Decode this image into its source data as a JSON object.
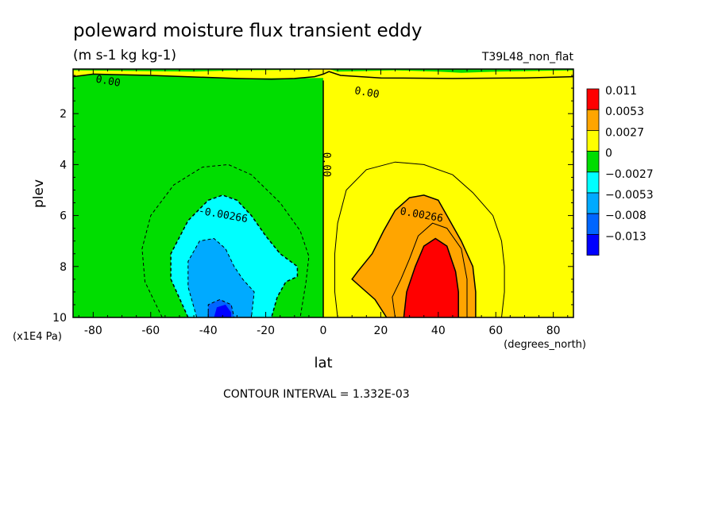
{
  "chart_data": {
    "type": "heatmap",
    "title": "poleward moisture flux transient eddy",
    "units": "(m s-1 kg kg-1)",
    "run_label": "T39L48_non_flat",
    "xlabel": "lat",
    "ylabel": "plev",
    "x_units": "(degrees_north)",
    "y_units": "(x1E4 Pa)",
    "xlim": [
      -87,
      87
    ],
    "ylim": [
      10,
      0.25
    ],
    "x_ticks": [
      -80,
      -60,
      -40,
      -20,
      0,
      20,
      40,
      60,
      80
    ],
    "x_tick_labels": [
      "-80",
      "-60",
      "-40",
      "-20",
      "0",
      "20",
      "40",
      "60",
      "80"
    ],
    "y_ticks": [
      2,
      4,
      6,
      8,
      10
    ],
    "y_tick_labels": [
      "2",
      "4",
      "6",
      "8",
      "10"
    ],
    "contour_interval": "CONTOUR INTERVAL = 1.332E-03",
    "contour_labels": [
      {
        "text": "0.00",
        "x": -75,
        "y": 0.85
      },
      {
        "text": "0.00",
        "x": 15,
        "y": 1.3
      },
      {
        "text": "0.00",
        "x": 0,
        "y": 4.0
      },
      {
        "text": "-0.00266",
        "x": -35,
        "y": 6.1
      },
      {
        "text": "0.00266",
        "x": 34,
        "y": 6.1
      }
    ],
    "legend": {
      "placement": "right",
      "levels": [
        {
          "label": "0.011",
          "color": "#ff0000"
        },
        {
          "label": "0.0053",
          "color": "#ffa500"
        },
        {
          "label": "0.0027",
          "color": "#ffff00"
        },
        {
          "label": "0",
          "color": "#00dd00"
        },
        {
          "label": "−0.0027",
          "color": "#00ffff"
        },
        {
          "label": "−0.0053",
          "color": "#00aaff"
        },
        {
          "label": "−0.008",
          "color": "#0066ff"
        },
        {
          "label": "−0.013",
          "color": "#0000ff"
        }
      ]
    },
    "regions": [
      {
        "name": "south-negative",
        "color": "#00dd00",
        "points": [
          [
            -87,
            0.55
          ],
          [
            -87,
            10
          ],
          [
            0,
            10
          ],
          [
            0,
            0.6
          ],
          [
            -30,
            0.62
          ],
          [
            -60,
            0.5
          ],
          [
            -80,
            0.45
          ]
        ]
      },
      {
        "name": "top-south-strip",
        "color": "#00dd00",
        "points": [
          [
            -87,
            0.25
          ],
          [
            -87,
            0.3
          ],
          [
            -45,
            0.35
          ],
          [
            -30,
            0.3
          ],
          [
            -5,
            0.28
          ],
          [
            -2,
            0.25
          ]
        ]
      },
      {
        "name": "top-north-strip",
        "color": "#00dd00",
        "points": [
          [
            2,
            0.25
          ],
          [
            5,
            0.35
          ],
          [
            25,
            0.3
          ],
          [
            40,
            0.35
          ],
          [
            48,
            0.4
          ],
          [
            60,
            0.35
          ],
          [
            87,
            0.3
          ],
          [
            87,
            0.25
          ]
        ]
      },
      {
        "name": "south-contour-0.0027",
        "color": "#00ffff",
        "points": [
          [
            -20,
            10
          ],
          [
            -47,
            10
          ],
          [
            -53,
            8.5
          ],
          [
            -53,
            7.5
          ],
          [
            -47,
            6.2
          ],
          [
            -40,
            5.4
          ],
          [
            -35,
            5.2
          ],
          [
            -30,
            5.4
          ],
          [
            -25,
            6.0
          ],
          [
            -20,
            6.8
          ],
          [
            -15,
            7.5
          ],
          [
            -9,
            8.0
          ],
          [
            -9,
            8.4
          ],
          [
            -13,
            8.6
          ],
          [
            -16,
            9.2
          ],
          [
            -18,
            10
          ]
        ]
      },
      {
        "name": "south-contour-0.0053",
        "color": "#00aaff",
        "points": [
          [
            -44,
            10
          ],
          [
            -47,
            8.8
          ],
          [
            -47,
            7.8
          ],
          [
            -43,
            7.0
          ],
          [
            -38,
            6.9
          ],
          [
            -34,
            7.3
          ],
          [
            -31,
            8.0
          ],
          [
            -28,
            8.5
          ],
          [
            -24,
            9.0
          ],
          [
            -25,
            10
          ]
        ]
      },
      {
        "name": "south-contour-0.008",
        "color": "#0066ff",
        "points": [
          [
            -40,
            10
          ],
          [
            -40,
            9.5
          ],
          [
            -36,
            9.3
          ],
          [
            -32,
            9.5
          ],
          [
            -31,
            10
          ]
        ]
      },
      {
        "name": "south-contour-0.013",
        "color": "#0000ff",
        "points": [
          [
            -38,
            10
          ],
          [
            -37,
            9.6
          ],
          [
            -34,
            9.5
          ],
          [
            -32,
            9.8
          ],
          [
            -32,
            10
          ]
        ]
      },
      {
        "name": "north-contour-0.0027",
        "color": "#ffa500",
        "points": [
          [
            22,
            10
          ],
          [
            18,
            9.3
          ],
          [
            13,
            8.8
          ],
          [
            10,
            8.5
          ],
          [
            12,
            8.2
          ],
          [
            17,
            7.5
          ],
          [
            21,
            6.6
          ],
          [
            25,
            5.8
          ],
          [
            30,
            5.3
          ],
          [
            35,
            5.2
          ],
          [
            40,
            5.4
          ],
          [
            44,
            6.2
          ],
          [
            48,
            7.0
          ],
          [
            52,
            8.0
          ],
          [
            53,
            9.0
          ],
          [
            53,
            10
          ]
        ]
      },
      {
        "name": "north-contour-0.0053",
        "color": "#ff0000",
        "points": [
          [
            28,
            10
          ],
          [
            29,
            9.0
          ],
          [
            32,
            8.0
          ],
          [
            35,
            7.2
          ],
          [
            39,
            6.9
          ],
          [
            43,
            7.2
          ],
          [
            46,
            8.2
          ],
          [
            47,
            9.0
          ],
          [
            47,
            10
          ]
        ]
      }
    ],
    "contours": [
      {
        "style": "solid",
        "width": 1.5,
        "points": [
          [
            0,
            0.7
          ],
          [
            0,
            10
          ]
        ]
      },
      {
        "style": "solid",
        "width": 1.5,
        "points": [
          [
            -87,
            0.55
          ],
          [
            -80,
            0.45
          ],
          [
            -60,
            0.5
          ],
          [
            -30,
            0.62
          ],
          [
            -18,
            0.65
          ],
          [
            -10,
            0.62
          ],
          [
            -3,
            0.55
          ],
          [
            0,
            0.45
          ],
          [
            2,
            0.35
          ],
          [
            6,
            0.5
          ],
          [
            20,
            0.6
          ],
          [
            45,
            0.62
          ],
          [
            70,
            0.6
          ],
          [
            87,
            0.55
          ]
        ]
      },
      {
        "style": "dashed",
        "width": 1,
        "points": [
          [
            -56,
            10
          ],
          [
            -62,
            8.6
          ],
          [
            -63,
            7.3
          ],
          [
            -60,
            6.0
          ],
          [
            -52,
            4.8
          ],
          [
            -42,
            4.1
          ],
          [
            -33,
            4.0
          ],
          [
            -25,
            4.4
          ],
          [
            -15,
            5.5
          ],
          [
            -8,
            6.6
          ],
          [
            -5,
            7.6
          ],
          [
            -6,
            8.6
          ],
          [
            -8,
            10
          ]
        ]
      },
      {
        "style": "dashed",
        "width": 1.5,
        "points": [
          [
            -47,
            10
          ],
          [
            -53,
            8.5
          ],
          [
            -53,
            7.5
          ],
          [
            -47,
            6.2
          ],
          [
            -40,
            5.4
          ],
          [
            -35,
            5.2
          ],
          [
            -30,
            5.4
          ],
          [
            -25,
            6.0
          ],
          [
            -20,
            6.8
          ],
          [
            -15,
            7.5
          ],
          [
            -9,
            8.0
          ],
          [
            -9,
            8.4
          ],
          [
            -13,
            8.6
          ],
          [
            -16,
            9.2
          ],
          [
            -18,
            10
          ]
        ]
      },
      {
        "style": "dashed",
        "width": 1,
        "points": [
          [
            -44,
            10
          ],
          [
            -47,
            8.8
          ],
          [
            -47,
            7.8
          ],
          [
            -43,
            7.0
          ],
          [
            -38,
            6.9
          ],
          [
            -34,
            7.3
          ],
          [
            -31,
            8.0
          ],
          [
            -28,
            8.5
          ],
          [
            -24,
            9.0
          ],
          [
            -25,
            10
          ]
        ]
      },
      {
        "style": "dashed",
        "width": 1,
        "points": [
          [
            -40,
            10
          ],
          [
            -40,
            9.5
          ],
          [
            -36,
            9.3
          ],
          [
            -32,
            9.5
          ],
          [
            -31,
            10
          ]
        ]
      },
      {
        "style": "solid",
        "width": 1,
        "points": [
          [
            5,
            10
          ],
          [
            4,
            9.0
          ],
          [
            4,
            7.5
          ],
          [
            5,
            6.3
          ],
          [
            8,
            5.0
          ],
          [
            15,
            4.2
          ],
          [
            25,
            3.9
          ],
          [
            35,
            4.0
          ],
          [
            45,
            4.4
          ],
          [
            52,
            5.1
          ],
          [
            59,
            6.0
          ],
          [
            62,
            7.0
          ],
          [
            63,
            8.0
          ],
          [
            63,
            9.0
          ],
          [
            62,
            10
          ]
        ]
      },
      {
        "style": "solid",
        "width": 1.5,
        "points": [
          [
            22,
            10
          ],
          [
            18,
            9.3
          ],
          [
            13,
            8.8
          ],
          [
            10,
            8.5
          ],
          [
            12,
            8.2
          ],
          [
            17,
            7.5
          ],
          [
            21,
            6.6
          ],
          [
            25,
            5.8
          ],
          [
            30,
            5.3
          ],
          [
            35,
            5.2
          ],
          [
            40,
            5.4
          ],
          [
            44,
            6.2
          ],
          [
            48,
            7.0
          ],
          [
            52,
            8.0
          ],
          [
            53,
            9.0
          ],
          [
            53,
            10
          ]
        ]
      },
      {
        "style": "solid",
        "width": 1,
        "points": [
          [
            25,
            10
          ],
          [
            24,
            9.2
          ],
          [
            27,
            8.5
          ],
          [
            30,
            7.7
          ],
          [
            33,
            6.8
          ],
          [
            38,
            6.3
          ],
          [
            43,
            6.5
          ],
          [
            48,
            7.3
          ],
          [
            50,
            8.5
          ],
          [
            50,
            10
          ]
        ]
      },
      {
        "style": "solid",
        "width": 1.5,
        "points": [
          [
            28,
            10
          ],
          [
            29,
            9.0
          ],
          [
            32,
            8.0
          ],
          [
            35,
            7.2
          ],
          [
            39,
            6.9
          ],
          [
            43,
            7.2
          ],
          [
            46,
            8.2
          ],
          [
            47,
            9.0
          ],
          [
            47,
            10
          ]
        ]
      }
    ]
  }
}
